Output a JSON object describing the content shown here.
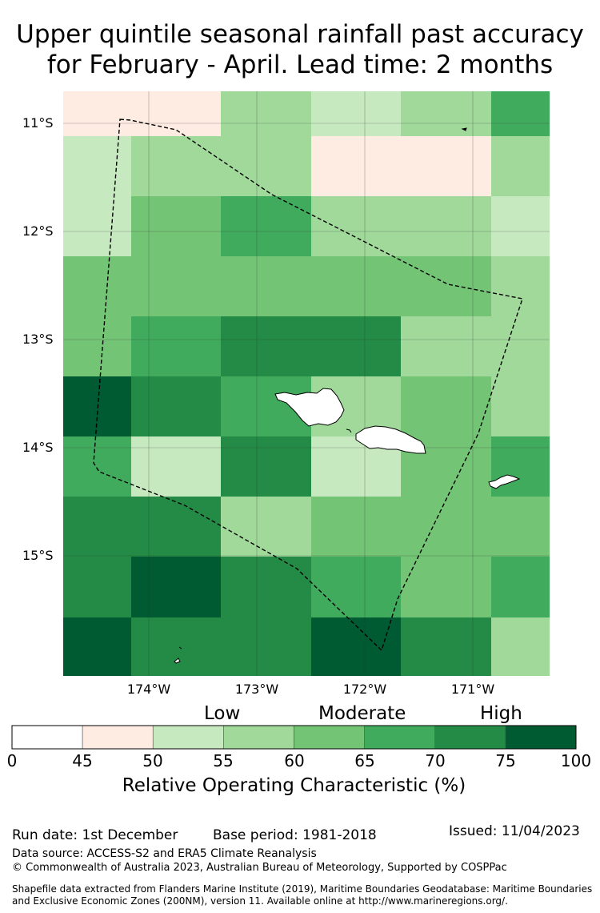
{
  "title_line1": "Upper quintile seasonal rainfall past accuracy",
  "title_line2": "for February - April. Lead time: 2 months",
  "lat_labels": [
    "11°S",
    "12°S",
    "13°S",
    "14°S",
    "15°S"
  ],
  "lon_labels": [
    "174°W",
    "173°W",
    "172°W",
    "171°W"
  ],
  "category_labels": {
    "low": "Low",
    "moderate": "Moderate",
    "high": "High"
  },
  "colorbar": {
    "ticks": [
      "0",
      "45",
      "50",
      "55",
      "60",
      "65",
      "70",
      "75",
      "100"
    ],
    "colors": [
      "#ffffff",
      "#feebe2",
      "#c7e9c0",
      "#a1d99b",
      "#74c476",
      "#41ab5d",
      "#238b45",
      "#005a32"
    ],
    "label": "Relative Operating Characteristic (%)"
  },
  "footer": {
    "run_date": "Run date: 1st December",
    "base_period": "Base period: 1981-2018",
    "issued": "Issued: 11/04/2023",
    "data_source": "Data source: ACCESS-S2 and ERA5 Climate Reanalysis",
    "copyright": "© Commonwealth of Australia 2023, Australian Bureau of Meteorology, Supported by COSPPac",
    "shapefile_line1": "Shapefile data extracted from Flanders Marine Institute (2019), Maritime Boundaries Geodatabase: Maritime Boundaries",
    "shapefile_line2": "and Exclusive Economic Zones (200NM), version 11. Available online at http://www.marineregions.org/."
  }
}
